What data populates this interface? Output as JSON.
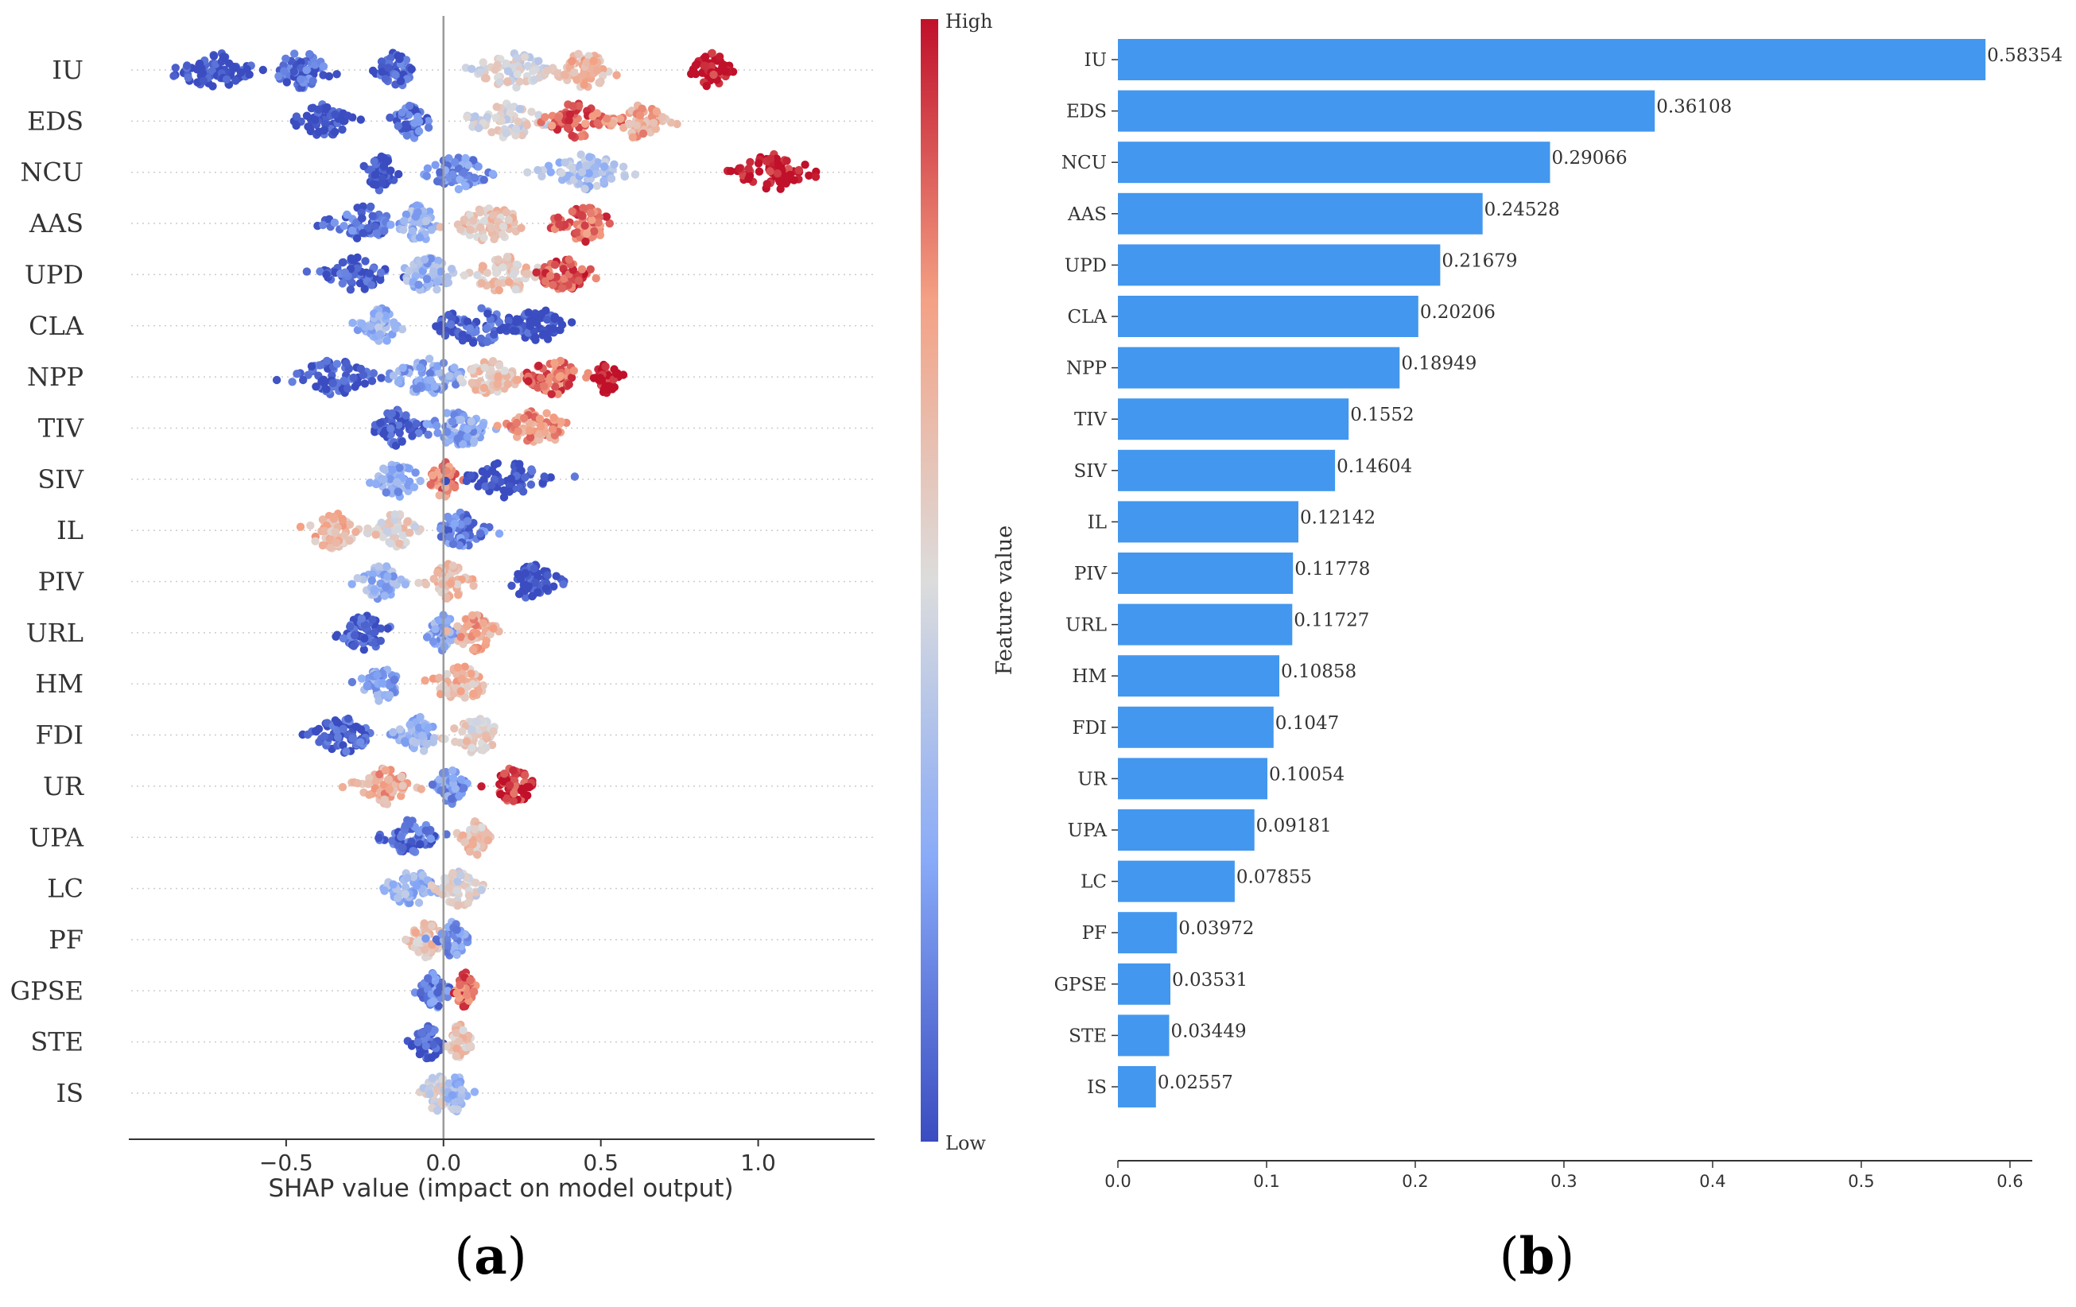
{
  "chart_data": [
    {
      "type": "scatter",
      "subtype": "shap-beeswarm",
      "panel_letter": "a",
      "xlabel": "SHAP value (impact on model output)",
      "ylabel": "",
      "xlim": [
        -1.0,
        1.37
      ],
      "xticks": [
        -0.5,
        0.0,
        0.5,
        1.0
      ],
      "xtick_labels": [
        "−0.5",
        "0.0",
        "0.5",
        "1.0"
      ],
      "features": [
        "IU",
        "EDS",
        "NCU",
        "AAS",
        "UPD",
        "CLA",
        "NPP",
        "TIV",
        "SIV",
        "IL",
        "PIV",
        "URL",
        "HM",
        "FDI",
        "UR",
        "UPA",
        "LC",
        "PF",
        "GPSE",
        "STE",
        "IS"
      ],
      "clusters": [
        [
          [
            -0.72,
            0.12,
            0.0
          ],
          [
            -0.45,
            0.08,
            0.1
          ],
          [
            -0.15,
            0.05,
            0.05
          ],
          [
            0.22,
            0.1,
            0.5
          ],
          [
            0.45,
            0.08,
            0.65
          ],
          [
            0.85,
            0.05,
            1.0
          ]
        ],
        [
          [
            -0.38,
            0.07,
            0.0
          ],
          [
            -0.1,
            0.05,
            0.1
          ],
          [
            0.2,
            0.1,
            0.5
          ],
          [
            0.42,
            0.08,
            0.85
          ],
          [
            0.62,
            0.07,
            0.7
          ]
        ],
        [
          [
            -0.2,
            0.05,
            0.0
          ],
          [
            0.05,
            0.08,
            0.2
          ],
          [
            0.45,
            0.12,
            0.35
          ],
          [
            1.05,
            0.1,
            1.0
          ]
        ],
        [
          [
            -0.25,
            0.08,
            0.1
          ],
          [
            -0.08,
            0.06,
            0.3
          ],
          [
            0.15,
            0.1,
            0.6
          ],
          [
            0.45,
            0.08,
            0.85
          ]
        ],
        [
          [
            -0.28,
            0.08,
            0.05
          ],
          [
            -0.05,
            0.07,
            0.3
          ],
          [
            0.2,
            0.1,
            0.6
          ],
          [
            0.38,
            0.07,
            0.9
          ]
        ],
        [
          [
            -0.2,
            0.05,
            0.3
          ],
          [
            0.1,
            0.12,
            0.05
          ],
          [
            0.3,
            0.07,
            0.0
          ]
        ],
        [
          [
            -0.35,
            0.1,
            0.05
          ],
          [
            -0.05,
            0.1,
            0.25
          ],
          [
            0.15,
            0.08,
            0.6
          ],
          [
            0.35,
            0.07,
            0.85
          ],
          [
            0.52,
            0.03,
            1.0
          ]
        ],
        [
          [
            -0.15,
            0.06,
            0.05
          ],
          [
            0.05,
            0.1,
            0.25
          ],
          [
            0.3,
            0.08,
            0.75
          ]
        ],
        [
          [
            -0.15,
            0.06,
            0.25
          ],
          [
            0.0,
            0.04,
            0.8
          ],
          [
            0.2,
            0.1,
            0.0
          ]
        ],
        [
          [
            -0.35,
            0.08,
            0.65
          ],
          [
            -0.15,
            0.05,
            0.55
          ],
          [
            0.05,
            0.07,
            0.15
          ]
        ],
        [
          [
            -0.2,
            0.06,
            0.3
          ],
          [
            0.02,
            0.06,
            0.65
          ],
          [
            0.28,
            0.07,
            0.0
          ]
        ],
        [
          [
            -0.25,
            0.07,
            0.05
          ],
          [
            0.0,
            0.04,
            0.25
          ],
          [
            0.1,
            0.06,
            0.7
          ]
        ],
        [
          [
            -0.2,
            0.05,
            0.25
          ],
          [
            0.05,
            0.08,
            0.65
          ]
        ],
        [
          [
            -0.32,
            0.08,
            0.05
          ],
          [
            -0.08,
            0.05,
            0.3
          ],
          [
            0.1,
            0.07,
            0.55
          ]
        ],
        [
          [
            -0.18,
            0.07,
            0.7
          ],
          [
            0.02,
            0.04,
            0.2
          ],
          [
            0.22,
            0.06,
            0.95
          ]
        ],
        [
          [
            -0.1,
            0.07,
            0.1
          ],
          [
            0.1,
            0.04,
            0.6
          ]
        ],
        [
          [
            -0.1,
            0.07,
            0.3
          ],
          [
            0.05,
            0.06,
            0.5
          ]
        ],
        [
          [
            -0.05,
            0.05,
            0.6
          ],
          [
            0.03,
            0.04,
            0.2
          ]
        ],
        [
          [
            -0.03,
            0.04,
            0.15
          ],
          [
            0.07,
            0.03,
            0.85
          ]
        ],
        [
          [
            -0.05,
            0.04,
            0.05
          ],
          [
            0.05,
            0.03,
            0.6
          ]
        ],
        [
          [
            -0.02,
            0.04,
            0.5
          ],
          [
            0.04,
            0.03,
            0.35
          ]
        ]
      ],
      "colorbar": {
        "high_label": "High",
        "low_label": "Low",
        "title": "Feature value",
        "low_color": "#3153c4",
        "mid_color": "#dcdcdc",
        "high_color": "#d0172a"
      }
    },
    {
      "type": "bar",
      "orientation": "horizontal",
      "panel_letter": "b",
      "categories": [
        "IU",
        "EDS",
        "NCU",
        "AAS",
        "UPD",
        "CLA",
        "NPP",
        "TIV",
        "SIV",
        "IL",
        "PIV",
        "URL",
        "HM",
        "FDI",
        "UR",
        "UPA",
        "LC",
        "PF",
        "GPSE",
        "STE",
        "IS"
      ],
      "values": [
        0.58354,
        0.36108,
        0.29066,
        0.24528,
        0.21679,
        0.20206,
        0.18949,
        0.1552,
        0.14604,
        0.12142,
        0.11778,
        0.11727,
        0.10858,
        0.1047,
        0.10054,
        0.09181,
        0.07855,
        0.03972,
        0.03531,
        0.03449,
        0.02557
      ],
      "value_labels": [
        "0.58354",
        "0.36108",
        "0.29066",
        "0.24528",
        "0.21679",
        "0.20206",
        "0.18949",
        "0.1552",
        "0.14604",
        "0.12142",
        "0.11778",
        "0.11727",
        "0.10858",
        "0.1047",
        "0.10054",
        "0.09181",
        "0.07855",
        "0.03972",
        "0.03531",
        "0.03449",
        "0.02557"
      ],
      "xlim": [
        0,
        0.615
      ],
      "xticks": [
        0.0,
        0.1,
        0.2,
        0.3,
        0.4,
        0.5,
        0.6
      ],
      "xtick_labels": [
        "0.0",
        "0.1",
        "0.2",
        "0.3",
        "0.4",
        "0.5",
        "0.6"
      ],
      "bar_color": "#4397ee",
      "xlabel": "",
      "ylabel": "",
      "title": ""
    }
  ]
}
